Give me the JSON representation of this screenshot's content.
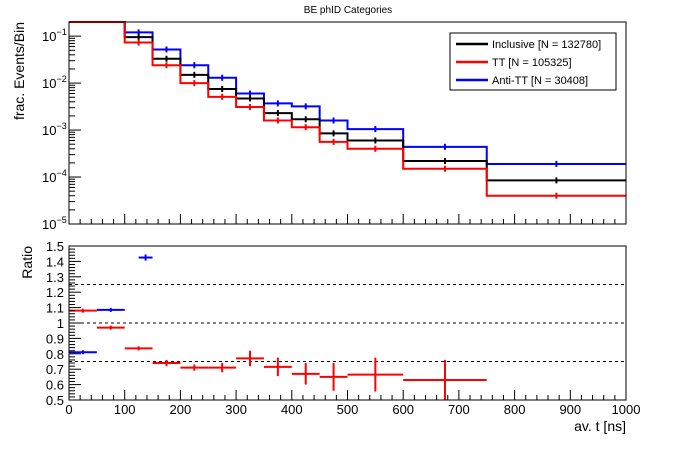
{
  "chart_data": [
    {
      "type": "step",
      "title": "BE phID Categories",
      "xlabel": "",
      "ylabel": "frac. Events/Bin",
      "xlim": [
        0,
        1000
      ],
      "ylim": [
        1e-05,
        0.2
      ],
      "log_y": true,
      "y_tick_labels": [
        {
          "value": 0.1,
          "base": "10",
          "exp": "−1"
        },
        {
          "value": 0.01,
          "base": "10",
          "exp": "−2"
        },
        {
          "value": 0.001,
          "base": "10",
          "exp": "−3"
        },
        {
          "value": 0.0001,
          "base": "10",
          "exp": "−4"
        },
        {
          "value": 1e-05,
          "base": "10",
          "exp": "−5"
        }
      ],
      "bin_edges": [
        0,
        100,
        150,
        200,
        250,
        300,
        350,
        400,
        450,
        500,
        600,
        750,
        1000
      ],
      "series": [
        {
          "name": "Inclusive [N = 132780]",
          "color": "#000000",
          "values": [
            0.2,
            0.095,
            0.033,
            0.015,
            0.0075,
            0.0047,
            0.0023,
            0.0017,
            0.00085,
            0.0006,
            0.00022,
            8.5e-05
          ]
        },
        {
          "name": "TT [N = 105325]",
          "color": "#ff0000",
          "values": [
            0.2,
            0.073,
            0.024,
            0.01,
            0.0051,
            0.0031,
            0.0016,
            0.00115,
            0.00056,
            0.0004,
            0.00015,
            4e-05
          ]
        },
        {
          "name": "Anti-TT [N = 30408]",
          "color": "#0000ff",
          "values": [
            0.2,
            0.12,
            0.052,
            0.024,
            0.013,
            0.006,
            0.0037,
            0.0032,
            0.0016,
            0.00105,
            0.00044,
            0.00019
          ]
        }
      ],
      "legend": {
        "position": "top-right",
        "entries": [
          "Inclusive [N = 132780]",
          "TT [N = 105325]",
          "Anti-TT [N = 30408]"
        ]
      }
    },
    {
      "type": "errorbar",
      "title": "",
      "xlabel": "av. t [ns]",
      "ylabel": "Ratio",
      "xlim": [
        0,
        1000
      ],
      "ylim": [
        0.5,
        1.5
      ],
      "x_ticks": [
        0,
        100,
        200,
        300,
        400,
        500,
        600,
        700,
        800,
        900,
        1000
      ],
      "y_ticks": [
        0.5,
        0.6,
        0.7,
        0.8,
        0.9,
        1,
        1.1,
        1.2,
        1.3,
        1.4,
        1.5
      ],
      "reference_lines": [
        0.75,
        1.0,
        1.25
      ],
      "series": [
        {
          "name": "Anti-TT / Inclusive",
          "color": "#0000ff",
          "points": [
            {
              "x": 25,
              "xerr": 25,
              "y": 0.81,
              "yerr": 0.005
            },
            {
              "x": 75,
              "xerr": 25,
              "y": 1.085,
              "yerr": 0.006
            },
            {
              "x": 137.5,
              "xerr": 12.5,
              "y": 1.425,
              "yerr": 0.02
            }
          ]
        },
        {
          "name": "TT / Inclusive",
          "color": "#ff0000",
          "points": [
            {
              "x": 25,
              "xerr": 25,
              "y": 1.08,
              "yerr": 0.004
            },
            {
              "x": 75,
              "xerr": 25,
              "y": 0.97,
              "yerr": 0.005
            },
            {
              "x": 125,
              "xerr": 25,
              "y": 0.835,
              "yerr": 0.008
            },
            {
              "x": 175,
              "xerr": 25,
              "y": 0.74,
              "yerr": 0.02
            },
            {
              "x": 225,
              "xerr": 25,
              "y": 0.71,
              "yerr": 0.02
            },
            {
              "x": 275,
              "xerr": 25,
              "y": 0.71,
              "yerr": 0.03
            },
            {
              "x": 325,
              "xerr": 25,
              "y": 0.77,
              "yerr": 0.05
            },
            {
              "x": 375,
              "xerr": 25,
              "y": 0.715,
              "yerr": 0.06
            },
            {
              "x": 425,
              "xerr": 25,
              "y": 0.67,
              "yerr": 0.07
            },
            {
              "x": 475,
              "xerr": 25,
              "y": 0.65,
              "yerr": 0.09
            },
            {
              "x": 550,
              "xerr": 50,
              "y": 0.665,
              "yerr": 0.11
            },
            {
              "x": 675,
              "xerr": 75,
              "y": 0.63,
              "yerr": 0.13
            }
          ]
        }
      ]
    }
  ]
}
